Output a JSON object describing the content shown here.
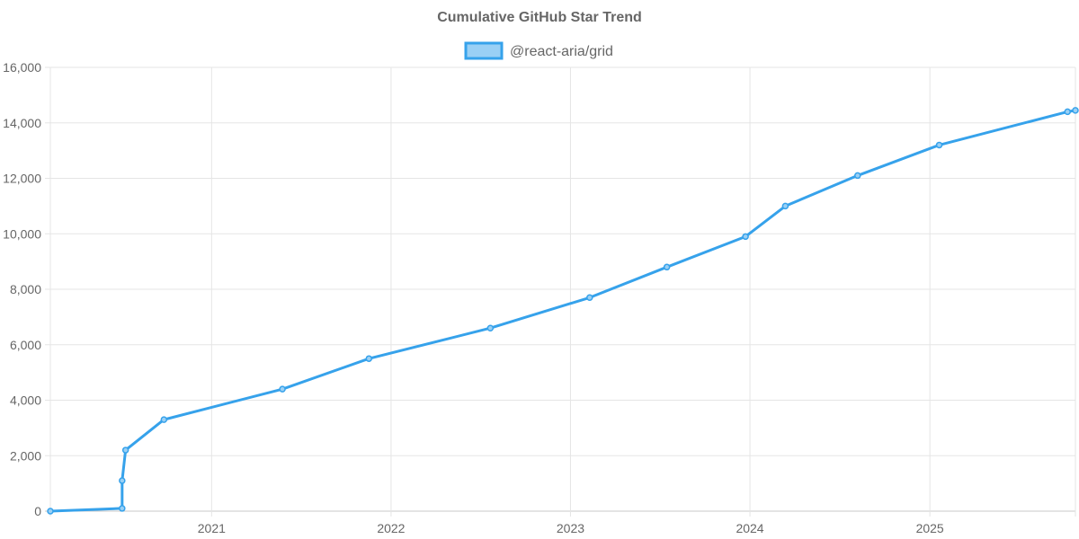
{
  "chart_data": {
    "type": "line",
    "title": "Cumulative GitHub Star Trend",
    "xlabel": "",
    "ylabel": "",
    "x_tick_labels": [
      "2021",
      "2022",
      "2023",
      "2024",
      "2025"
    ],
    "y_tick_labels": [
      "0",
      "2,000",
      "4,000",
      "6,000",
      "8,000",
      "10,000",
      "12,000",
      "14,000",
      "16,000"
    ],
    "ylim": [
      0,
      16000
    ],
    "xlim": [
      "2020-02-08",
      "2025-10-24"
    ],
    "grid": true,
    "legend_position": "top-center",
    "series": [
      {
        "name": "@react-aria/grid",
        "color": "#36a2eb",
        "fill_color": "#9ad0f5",
        "points": [
          {
            "x": "2020-02-08",
            "y": 0
          },
          {
            "x": "2020-07-03",
            "y": 100
          },
          {
            "x": "2020-07-03",
            "y": 1100
          },
          {
            "x": "2020-07-10",
            "y": 2200
          },
          {
            "x": "2020-09-26",
            "y": 3300
          },
          {
            "x": "2021-05-25",
            "y": 4400
          },
          {
            "x": "2021-11-17",
            "y": 5500
          },
          {
            "x": "2022-07-22",
            "y": 6600
          },
          {
            "x": "2023-02-09",
            "y": 7700
          },
          {
            "x": "2023-07-16",
            "y": 8800
          },
          {
            "x": "2023-12-23",
            "y": 9900
          },
          {
            "x": "2024-03-13",
            "y": 11000
          },
          {
            "x": "2024-08-07",
            "y": 12100
          },
          {
            "x": "2025-01-20",
            "y": 13200
          },
          {
            "x": "2025-10-08",
            "y": 14400
          },
          {
            "x": "2025-10-24",
            "y": 14450
          }
        ]
      }
    ]
  }
}
